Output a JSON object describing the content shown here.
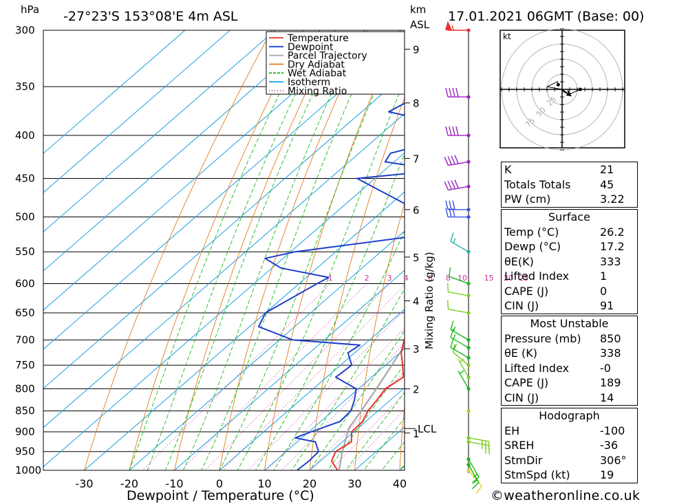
{
  "header": {
    "pressure_unit": "hPa",
    "location": "-27°23'S  153°08'E  4m  ASL",
    "height_unit_km": "km",
    "height_unit_asl": "ASL",
    "datetime": "17.01.2021  06GMT  (Base: 00)"
  },
  "chart_data": {
    "type": "line",
    "subtype": "skew-T log-p",
    "xlabel": "Dewpoint / Temperature (°C)",
    "x_ticks": [
      -30,
      -20,
      -10,
      0,
      10,
      20,
      30,
      40
    ],
    "pressure_levels": [
      300,
      350,
      400,
      450,
      500,
      550,
      600,
      650,
      700,
      750,
      800,
      850,
      900,
      950,
      1000
    ],
    "height_ticks_km": [
      {
        "label": "9",
        "p": 316
      },
      {
        "label": "8",
        "p": 366
      },
      {
        "label": "7",
        "p": 426
      },
      {
        "label": "6",
        "p": 490
      },
      {
        "label": "5",
        "p": 558
      },
      {
        "label": "4",
        "p": 629
      },
      {
        "label": "3",
        "p": 717
      },
      {
        "label": "2",
        "p": 800
      },
      {
        "label": "1",
        "p": 903
      }
    ],
    "lcl_label": "LCL",
    "lcl_p": 892,
    "mixing_ratio_ylabel": "Mixing Ratio (g/kg)",
    "mixing_ratio_labels": [
      "1",
      "2",
      "3",
      "4",
      "6",
      "8",
      "10",
      "15",
      "20",
      "25"
    ],
    "mixing_ratio_values": [
      1,
      2,
      3,
      4,
      6,
      8,
      10,
      15,
      20,
      25
    ],
    "legend": [
      {
        "name": "Temperature",
        "color": "#e8302a"
      },
      {
        "name": "Dewpoint",
        "color": "#1e3ecc"
      },
      {
        "name": "Parcel Trajectory",
        "color": "#a6a6a6"
      },
      {
        "name": "Dry Adiabat",
        "color": "#e07b1a"
      },
      {
        "name": "Wet Adiabat",
        "color": "#18b818"
      },
      {
        "name": "Isotherm",
        "color": "#1aa0e0"
      },
      {
        "name": "Mixing Ratio",
        "color": "#cc2c99"
      }
    ],
    "temperature": [
      {
        "p": 1000,
        "t": 26.2
      },
      {
        "p": 975,
        "t": 22.5
      },
      {
        "p": 950,
        "t": 21.0
      },
      {
        "p": 925,
        "t": 22.0
      },
      {
        "p": 900,
        "t": 19.5
      },
      {
        "p": 875,
        "t": 19.3
      },
      {
        "p": 850,
        "t": 17.8
      },
      {
        "p": 825,
        "t": 17.0
      },
      {
        "p": 800,
        "t": 16.0
      },
      {
        "p": 775,
        "t": 17.0
      },
      {
        "p": 750,
        "t": 13.8
      },
      {
        "p": 725,
        "t": 10.3
      },
      {
        "p": 700,
        "t": 7.7
      },
      {
        "p": 650,
        "t": 5.3
      },
      {
        "p": 600,
        "t": 0.5
      },
      {
        "p": 550,
        "t": -3.8
      },
      {
        "p": 500,
        "t": -9.0
      },
      {
        "p": 450,
        "t": -14.2
      },
      {
        "p": 425,
        "t": -18.0
      },
      {
        "p": 400,
        "t": -22.2
      },
      {
        "p": 375,
        "t": -26.8
      },
      {
        "p": 350,
        "t": -32.0
      },
      {
        "p": 325,
        "t": -37.8
      },
      {
        "p": 300,
        "t": -44.5
      }
    ],
    "dewpoint": [
      {
        "p": 1000,
        "t": 17.2
      },
      {
        "p": 975,
        "t": 17.5
      },
      {
        "p": 950,
        "t": 17.2
      },
      {
        "p": 925,
        "t": 14.0
      },
      {
        "p": 915,
        "t": 8.5
      },
      {
        "p": 900,
        "t": 10.5
      },
      {
        "p": 875,
        "t": 14.3
      },
      {
        "p": 850,
        "t": 14.0
      },
      {
        "p": 825,
        "t": 12.0
      },
      {
        "p": 800,
        "t": 9.5
      },
      {
        "p": 775,
        "t": 2.0
      },
      {
        "p": 750,
        "t": 2.5
      },
      {
        "p": 725,
        "t": -1.5
      },
      {
        "p": 710,
        "t": -0.8
      },
      {
        "p": 700,
        "t": -17.0
      },
      {
        "p": 675,
        "t": -28.0
      },
      {
        "p": 650,
        "t": -30.0
      },
      {
        "p": 600,
        "t": -26.0
      },
      {
        "p": 590,
        "t": -25.0
      },
      {
        "p": 575,
        "t": -38.0
      },
      {
        "p": 560,
        "t": -44.0
      },
      {
        "p": 550,
        "t": -39.0
      },
      {
        "p": 525,
        "t": -14.5
      },
      {
        "p": 510,
        "t": -17.0
      },
      {
        "p": 500,
        "t": -18.0
      },
      {
        "p": 450,
        "t": -44.0
      },
      {
        "p": 440,
        "t": -27.5
      },
      {
        "p": 430,
        "t": -42.0
      },
      {
        "p": 420,
        "t": -43.0
      },
      {
        "p": 405,
        "t": -35.0
      },
      {
        "p": 400,
        "t": -35.8
      },
      {
        "p": 390,
        "t": -36.0
      },
      {
        "p": 375,
        "t": -54.0
      },
      {
        "p": 350,
        "t": -50.0
      },
      {
        "p": 335,
        "t": -48.0
      },
      {
        "p": 320,
        "t": -54.0
      },
      {
        "p": 315,
        "t": -60.0
      },
      {
        "p": 300,
        "t": -67.0
      }
    ],
    "parcel": [
      {
        "p": 1000,
        "t": 26.5
      },
      {
        "p": 950,
        "t": 22.5
      },
      {
        "p": 892,
        "t": 18.0
      },
      {
        "p": 850,
        "t": 16.3
      },
      {
        "p": 800,
        "t": 14.0
      },
      {
        "p": 750,
        "t": 11.4
      },
      {
        "p": 700,
        "t": 8.6
      },
      {
        "p": 650,
        "t": 5.4
      },
      {
        "p": 600,
        "t": 1.8
      },
      {
        "p": 550,
        "t": -2.3
      },
      {
        "p": 500,
        "t": -7.2
      },
      {
        "p": 450,
        "t": -12.8
      },
      {
        "p": 400,
        "t": -19.5
      },
      {
        "p": 350,
        "t": -27.5
      },
      {
        "p": 325,
        "t": -32.0
      },
      {
        "p": 310,
        "t": -35.0
      }
    ],
    "wind_barbs": [
      {
        "p": 1000,
        "dir": 140,
        "kt": 10,
        "color": "#e8d020"
      },
      {
        "p": 985,
        "dir": 150,
        "kt": 15,
        "color": "#18b818"
      },
      {
        "p": 970,
        "dir": 150,
        "kt": 15,
        "color": "#18b818"
      },
      {
        "p": 925,
        "dir": 100,
        "kt": 25,
        "color": "#7ad020"
      },
      {
        "p": 915,
        "dir": 100,
        "kt": 25,
        "color": "#7ad020"
      },
      {
        "p": 850,
        "dir": 0,
        "kt": 0,
        "color": "#a0d020"
      },
      {
        "p": 800,
        "dir": 330,
        "kt": 5,
        "color": "#18b818"
      },
      {
        "p": 775,
        "dir": 330,
        "kt": 5,
        "color": "#7ad020"
      },
      {
        "p": 750,
        "dir": 310,
        "kt": 10,
        "color": "#7ad020"
      },
      {
        "p": 735,
        "dir": 300,
        "kt": 15,
        "color": "#18b818"
      },
      {
        "p": 715,
        "dir": 300,
        "kt": 15,
        "color": "#18b818"
      },
      {
        "p": 700,
        "dir": 300,
        "kt": 15,
        "color": "#18b818"
      },
      {
        "p": 650,
        "dir": 280,
        "kt": 10,
        "color": "#7ad020"
      },
      {
        "p": 620,
        "dir": 280,
        "kt": 10,
        "color": "#7ad020"
      },
      {
        "p": 600,
        "dir": 290,
        "kt": 10,
        "color": "#18b818"
      },
      {
        "p": 550,
        "dir": 300,
        "kt": 15,
        "color": "#20b0a0"
      },
      {
        "p": 500,
        "dir": 270,
        "kt": 30,
        "color": "#3a50e0"
      },
      {
        "p": 490,
        "dir": 270,
        "kt": 30,
        "color": "#3a50e0"
      },
      {
        "p": 460,
        "dir": 260,
        "kt": 40,
        "color": "#9a20c0"
      },
      {
        "p": 430,
        "dir": 260,
        "kt": 40,
        "color": "#9a20c0"
      },
      {
        "p": 400,
        "dir": 270,
        "kt": 40,
        "color": "#9a20c0"
      },
      {
        "p": 360,
        "dir": 270,
        "kt": 40,
        "color": "#9a20c0"
      },
      {
        "p": 300,
        "dir": 270,
        "kt": 55,
        "color": "#e8302a"
      }
    ]
  },
  "hodograph": {
    "unit": "kt",
    "ring_labels": [
      "25",
      "50",
      "75"
    ]
  },
  "indices": [
    {
      "label": "K",
      "value": "21"
    },
    {
      "label": "Totals Totals",
      "value": "45"
    },
    {
      "label": "PW (cm)",
      "value": "3.22"
    }
  ],
  "surface": {
    "title": "Surface",
    "rows": [
      {
        "label": "Temp (°C)",
        "value": "26.2"
      },
      {
        "label": "Dewp (°C)",
        "value": "17.2"
      },
      {
        "label": "θE(K)",
        "value": "333"
      },
      {
        "label": "Lifted Index",
        "value": "1"
      },
      {
        "label": "CAPE (J)",
        "value": "0"
      },
      {
        "label": "CIN (J)",
        "value": "91"
      }
    ]
  },
  "most_unstable": {
    "title": "Most Unstable",
    "rows": [
      {
        "label": "Pressure (mb)",
        "value": "850"
      },
      {
        "label": "θE (K)",
        "value": "338"
      },
      {
        "label": "Lifted Index",
        "value": "-0"
      },
      {
        "label": "CAPE (J)",
        "value": "189"
      },
      {
        "label": "CIN (J)",
        "value": "14"
      }
    ]
  },
  "hodograph_table": {
    "title": "Hodograph",
    "rows": [
      {
        "label": "EH",
        "value": "-100"
      },
      {
        "label": "SREH",
        "value": "-36"
      },
      {
        "label": "StmDir",
        "value": "306°"
      },
      {
        "label": "StmSpd (kt)",
        "value": "19"
      }
    ]
  },
  "credit": "©weatheronline.co.uk"
}
